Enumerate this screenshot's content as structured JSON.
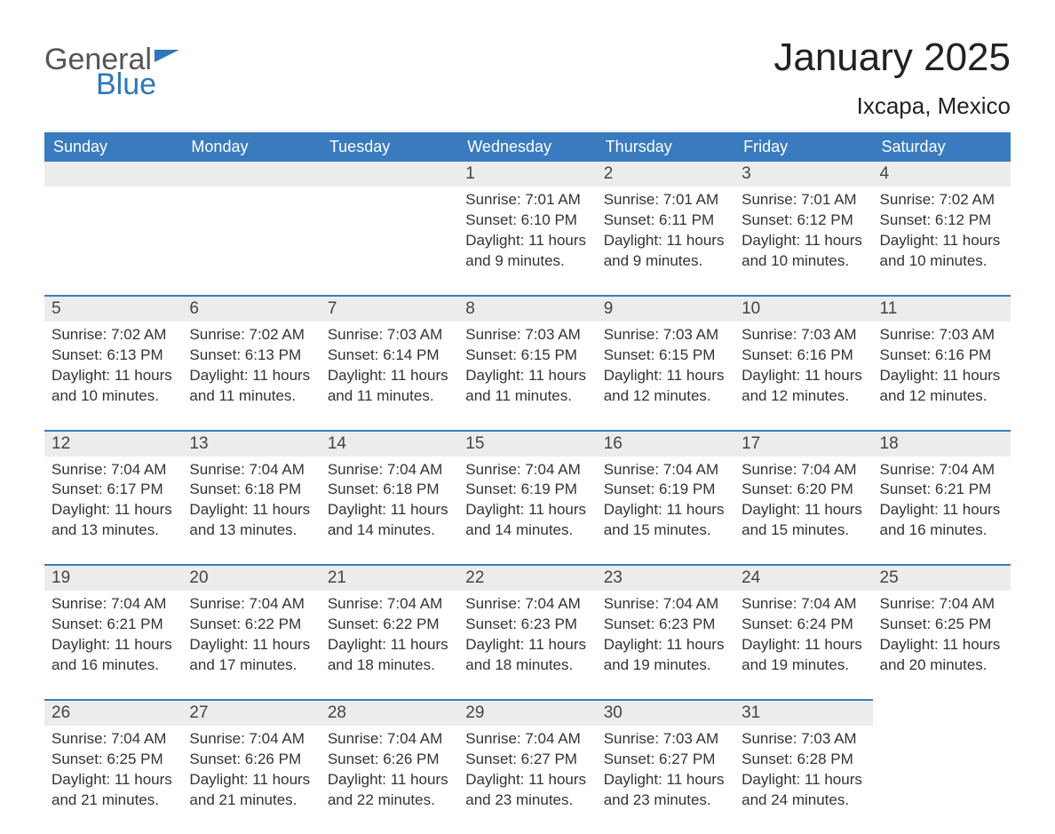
{
  "logo": {
    "line1": "General",
    "line2": "Blue"
  },
  "title": "January 2025",
  "location": "Ixcapa, Mexico",
  "colors": {
    "header_bg": "#3a7bbf",
    "header_text": "#ffffff",
    "daybar_bg": "#ececec",
    "daybar_border": "#3a7bbf",
    "body_text": "#333333",
    "logo_blue": "#2f76bb"
  },
  "weekdays": [
    "Sunday",
    "Monday",
    "Tuesday",
    "Wednesday",
    "Thursday",
    "Friday",
    "Saturday"
  ],
  "weeks": [
    [
      null,
      null,
      null,
      {
        "n": "1",
        "sr": "Sunrise: 7:01 AM",
        "ss": "Sunset: 6:10 PM",
        "d1": "Daylight: 11 hours",
        "d2": "and 9 minutes."
      },
      {
        "n": "2",
        "sr": "Sunrise: 7:01 AM",
        "ss": "Sunset: 6:11 PM",
        "d1": "Daylight: 11 hours",
        "d2": "and 9 minutes."
      },
      {
        "n": "3",
        "sr": "Sunrise: 7:01 AM",
        "ss": "Sunset: 6:12 PM",
        "d1": "Daylight: 11 hours",
        "d2": "and 10 minutes."
      },
      {
        "n": "4",
        "sr": "Sunrise: 7:02 AM",
        "ss": "Sunset: 6:12 PM",
        "d1": "Daylight: 11 hours",
        "d2": "and 10 minutes."
      }
    ],
    [
      {
        "n": "5",
        "sr": "Sunrise: 7:02 AM",
        "ss": "Sunset: 6:13 PM",
        "d1": "Daylight: 11 hours",
        "d2": "and 10 minutes."
      },
      {
        "n": "6",
        "sr": "Sunrise: 7:02 AM",
        "ss": "Sunset: 6:13 PM",
        "d1": "Daylight: 11 hours",
        "d2": "and 11 minutes."
      },
      {
        "n": "7",
        "sr": "Sunrise: 7:03 AM",
        "ss": "Sunset: 6:14 PM",
        "d1": "Daylight: 11 hours",
        "d2": "and 11 minutes."
      },
      {
        "n": "8",
        "sr": "Sunrise: 7:03 AM",
        "ss": "Sunset: 6:15 PM",
        "d1": "Daylight: 11 hours",
        "d2": "and 11 minutes."
      },
      {
        "n": "9",
        "sr": "Sunrise: 7:03 AM",
        "ss": "Sunset: 6:15 PM",
        "d1": "Daylight: 11 hours",
        "d2": "and 12 minutes."
      },
      {
        "n": "10",
        "sr": "Sunrise: 7:03 AM",
        "ss": "Sunset: 6:16 PM",
        "d1": "Daylight: 11 hours",
        "d2": "and 12 minutes."
      },
      {
        "n": "11",
        "sr": "Sunrise: 7:03 AM",
        "ss": "Sunset: 6:16 PM",
        "d1": "Daylight: 11 hours",
        "d2": "and 12 minutes."
      }
    ],
    [
      {
        "n": "12",
        "sr": "Sunrise: 7:04 AM",
        "ss": "Sunset: 6:17 PM",
        "d1": "Daylight: 11 hours",
        "d2": "and 13 minutes."
      },
      {
        "n": "13",
        "sr": "Sunrise: 7:04 AM",
        "ss": "Sunset: 6:18 PM",
        "d1": "Daylight: 11 hours",
        "d2": "and 13 minutes."
      },
      {
        "n": "14",
        "sr": "Sunrise: 7:04 AM",
        "ss": "Sunset: 6:18 PM",
        "d1": "Daylight: 11 hours",
        "d2": "and 14 minutes."
      },
      {
        "n": "15",
        "sr": "Sunrise: 7:04 AM",
        "ss": "Sunset: 6:19 PM",
        "d1": "Daylight: 11 hours",
        "d2": "and 14 minutes."
      },
      {
        "n": "16",
        "sr": "Sunrise: 7:04 AM",
        "ss": "Sunset: 6:19 PM",
        "d1": "Daylight: 11 hours",
        "d2": "and 15 minutes."
      },
      {
        "n": "17",
        "sr": "Sunrise: 7:04 AM",
        "ss": "Sunset: 6:20 PM",
        "d1": "Daylight: 11 hours",
        "d2": "and 15 minutes."
      },
      {
        "n": "18",
        "sr": "Sunrise: 7:04 AM",
        "ss": "Sunset: 6:21 PM",
        "d1": "Daylight: 11 hours",
        "d2": "and 16 minutes."
      }
    ],
    [
      {
        "n": "19",
        "sr": "Sunrise: 7:04 AM",
        "ss": "Sunset: 6:21 PM",
        "d1": "Daylight: 11 hours",
        "d2": "and 16 minutes."
      },
      {
        "n": "20",
        "sr": "Sunrise: 7:04 AM",
        "ss": "Sunset: 6:22 PM",
        "d1": "Daylight: 11 hours",
        "d2": "and 17 minutes."
      },
      {
        "n": "21",
        "sr": "Sunrise: 7:04 AM",
        "ss": "Sunset: 6:22 PM",
        "d1": "Daylight: 11 hours",
        "d2": "and 18 minutes."
      },
      {
        "n": "22",
        "sr": "Sunrise: 7:04 AM",
        "ss": "Sunset: 6:23 PM",
        "d1": "Daylight: 11 hours",
        "d2": "and 18 minutes."
      },
      {
        "n": "23",
        "sr": "Sunrise: 7:04 AM",
        "ss": "Sunset: 6:23 PM",
        "d1": "Daylight: 11 hours",
        "d2": "and 19 minutes."
      },
      {
        "n": "24",
        "sr": "Sunrise: 7:04 AM",
        "ss": "Sunset: 6:24 PM",
        "d1": "Daylight: 11 hours",
        "d2": "and 19 minutes."
      },
      {
        "n": "25",
        "sr": "Sunrise: 7:04 AM",
        "ss": "Sunset: 6:25 PM",
        "d1": "Daylight: 11 hours",
        "d2": "and 20 minutes."
      }
    ],
    [
      {
        "n": "26",
        "sr": "Sunrise: 7:04 AM",
        "ss": "Sunset: 6:25 PM",
        "d1": "Daylight: 11 hours",
        "d2": "and 21 minutes."
      },
      {
        "n": "27",
        "sr": "Sunrise: 7:04 AM",
        "ss": "Sunset: 6:26 PM",
        "d1": "Daylight: 11 hours",
        "d2": "and 21 minutes."
      },
      {
        "n": "28",
        "sr": "Sunrise: 7:04 AM",
        "ss": "Sunset: 6:26 PM",
        "d1": "Daylight: 11 hours",
        "d2": "and 22 minutes."
      },
      {
        "n": "29",
        "sr": "Sunrise: 7:04 AM",
        "ss": "Sunset: 6:27 PM",
        "d1": "Daylight: 11 hours",
        "d2": "and 23 minutes."
      },
      {
        "n": "30",
        "sr": "Sunrise: 7:03 AM",
        "ss": "Sunset: 6:27 PM",
        "d1": "Daylight: 11 hours",
        "d2": "and 23 minutes."
      },
      {
        "n": "31",
        "sr": "Sunrise: 7:03 AM",
        "ss": "Sunset: 6:28 PM",
        "d1": "Daylight: 11 hours",
        "d2": "and 24 minutes."
      },
      null
    ]
  ]
}
